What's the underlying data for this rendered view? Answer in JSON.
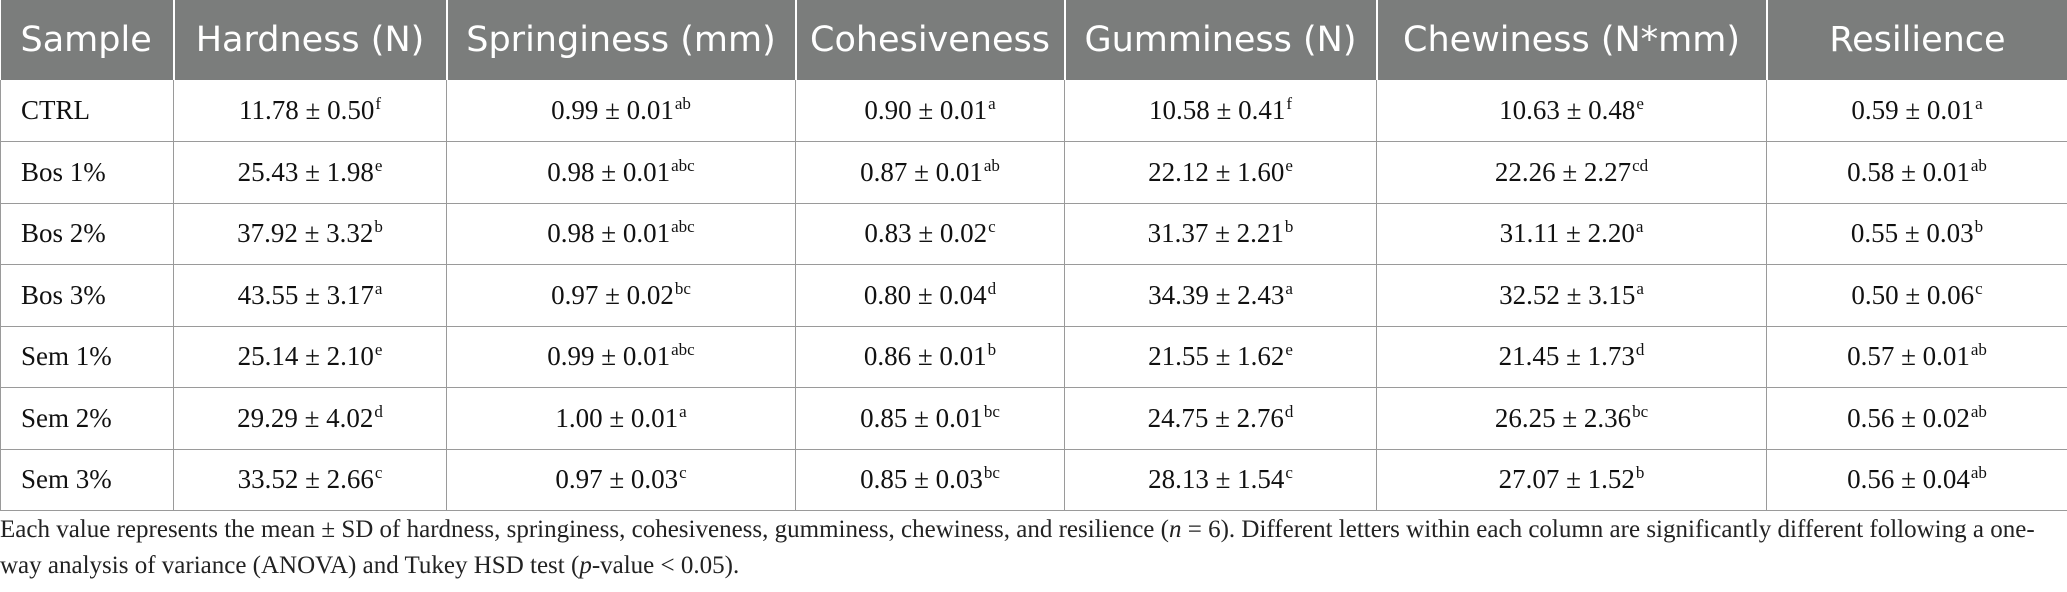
{
  "table": {
    "columns": [
      "Sample",
      "Hardness (N)",
      "Springiness (mm)",
      "Cohesiveness",
      "Gumminess (N)",
      "Chewiness (N*mm)",
      "Resilience"
    ],
    "rows": [
      {
        "sample": "CTRL",
        "cells": [
          {
            "value": "11.78 ± 0.50",
            "sup": "f"
          },
          {
            "value": "0.99 ± 0.01",
            "sup": "ab"
          },
          {
            "value": "0.90 ± 0.01",
            "sup": "a"
          },
          {
            "value": "10.58 ± 0.41",
            "sup": "f"
          },
          {
            "value": "10.63 ± 0.48",
            "sup": "e"
          },
          {
            "value": "0.59 ± 0.01",
            "sup": "a"
          }
        ]
      },
      {
        "sample": "Bos 1%",
        "cells": [
          {
            "value": "25.43 ± 1.98",
            "sup": "e"
          },
          {
            "value": "0.98 ± 0.01",
            "sup": "abc"
          },
          {
            "value": "0.87 ± 0.01",
            "sup": "ab"
          },
          {
            "value": "22.12 ± 1.60",
            "sup": "e"
          },
          {
            "value": "22.26 ± 2.27",
            "sup": "cd"
          },
          {
            "value": "0.58 ± 0.01",
            "sup": "ab"
          }
        ]
      },
      {
        "sample": "Bos 2%",
        "cells": [
          {
            "value": "37.92 ± 3.32",
            "sup": "b"
          },
          {
            "value": "0.98 ± 0.01",
            "sup": "abc"
          },
          {
            "value": "0.83 ± 0.02",
            "sup": "c"
          },
          {
            "value": "31.37 ± 2.21",
            "sup": "b"
          },
          {
            "value": "31.11 ± 2.20",
            "sup": "a"
          },
          {
            "value": "0.55 ± 0.03",
            "sup": "b"
          }
        ]
      },
      {
        "sample": "Bos 3%",
        "cells": [
          {
            "value": "43.55 ± 3.17",
            "sup": "a"
          },
          {
            "value": "0.97 ± 0.02",
            "sup": "bc"
          },
          {
            "value": "0.80 ± 0.04",
            "sup": "d"
          },
          {
            "value": "34.39 ± 2.43",
            "sup": "a"
          },
          {
            "value": "32.52 ± 3.15",
            "sup": "a"
          },
          {
            "value": "0.50 ± 0.06",
            "sup": "c"
          }
        ]
      },
      {
        "sample": "Sem 1%",
        "cells": [
          {
            "value": "25.14 ± 2.10",
            "sup": "e"
          },
          {
            "value": "0.99 ± 0.01",
            "sup": "abc"
          },
          {
            "value": "0.86 ± 0.01",
            "sup": "b"
          },
          {
            "value": "21.55 ± 1.62",
            "sup": "e"
          },
          {
            "value": "21.45 ± 1.73",
            "sup": "d"
          },
          {
            "value": "0.57 ± 0.01",
            "sup": "ab"
          }
        ]
      },
      {
        "sample": "Sem 2%",
        "cells": [
          {
            "value": "29.29 ± 4.02",
            "sup": "d"
          },
          {
            "value": "1.00 ± 0.01",
            "sup": "a"
          },
          {
            "value": "0.85 ± 0.01",
            "sup": "bc"
          },
          {
            "value": "24.75 ± 2.76",
            "sup": "d"
          },
          {
            "value": "26.25 ± 2.36",
            "sup": "bc"
          },
          {
            "value": "0.56 ± 0.02",
            "sup": "ab"
          }
        ]
      },
      {
        "sample": "Sem 3%",
        "cells": [
          {
            "value": "33.52 ± 2.66",
            "sup": "c"
          },
          {
            "value": "0.97 ± 0.03",
            "sup": "c"
          },
          {
            "value": "0.85 ± 0.03",
            "sup": "bc"
          },
          {
            "value": "28.13 ± 1.54",
            "sup": "c"
          },
          {
            "value": "27.07 ± 1.52",
            "sup": "b"
          },
          {
            "value": "0.56 ± 0.04",
            "sup": "ab"
          }
        ]
      }
    ]
  },
  "footnote": {
    "part1": "Each value represents the mean ± SD of hardness, springiness, cohesiveness, gumminess, chewiness, and resilience (",
    "n_symbol": "n",
    "part2": " = 6). Different letters within each column are significantly different following a one-way analysis of variance (ANOVA) and Tukey HSD test (",
    "p_symbol": "p",
    "part3": "-value < 0.05)."
  },
  "colors": {
    "header_background": "#7b7d7c",
    "header_text": "#ffffff",
    "grid_line": "#9a9a9a"
  }
}
